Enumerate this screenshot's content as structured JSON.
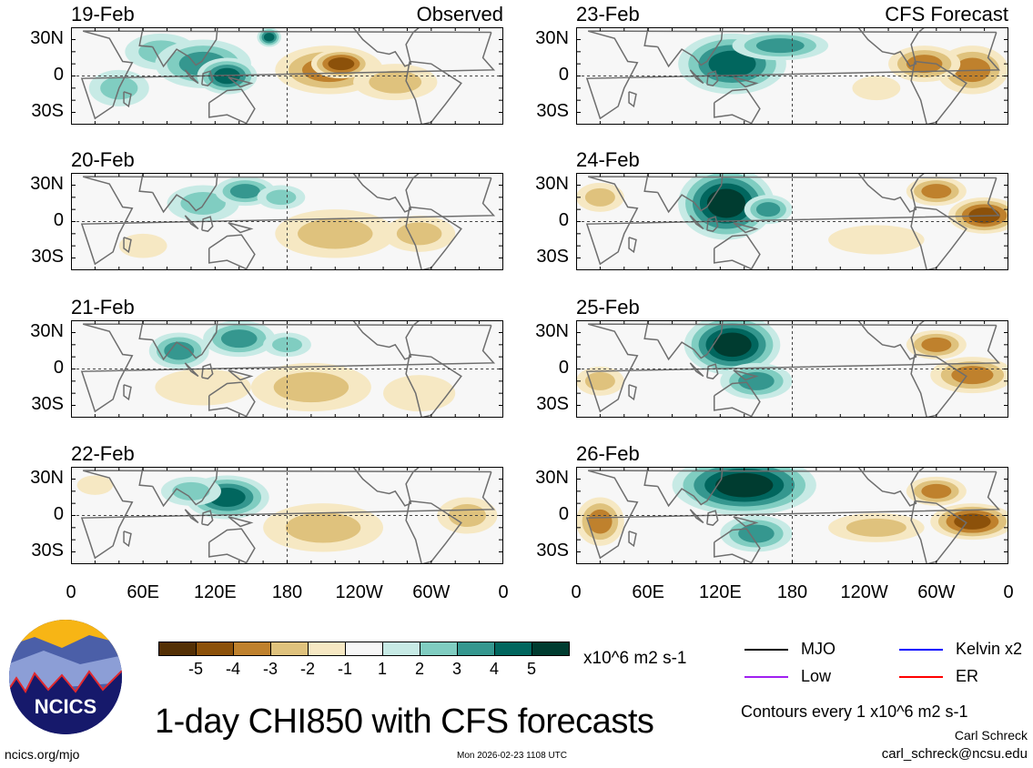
{
  "panels": [
    {
      "date": "19-Feb",
      "label": "Observed"
    },
    {
      "date": "20-Feb",
      "label": ""
    },
    {
      "date": "21-Feb",
      "label": ""
    },
    {
      "date": "22-Feb",
      "label": ""
    },
    {
      "date": "23-Feb",
      "label": "CFS Forecast"
    },
    {
      "date": "24-Feb",
      "label": ""
    },
    {
      "date": "25-Feb",
      "label": ""
    },
    {
      "date": "26-Feb",
      "label": ""
    }
  ],
  "y_ticks": [
    "30N",
    "0",
    "30S"
  ],
  "x_ticks": [
    "0",
    "60E",
    "120E",
    "180",
    "120W",
    "60W",
    "0"
  ],
  "colorbar": {
    "colors": [
      "#543005",
      "#8c510a",
      "#bf812d",
      "#dfc27d",
      "#f6e8c3",
      "#f7f7f7",
      "#c7eae5",
      "#80cdc1",
      "#35978f",
      "#01665e",
      "#003c30"
    ],
    "labels": [
      "-5",
      "-4",
      "-3",
      "-2",
      "-1",
      "1",
      "2",
      "3",
      "4",
      "5"
    ],
    "units": "x10^6 m2 s-1"
  },
  "legend": [
    {
      "label": "MJO",
      "color": "#000000"
    },
    {
      "label": "Kelvin x2",
      "color": "#0000ff"
    },
    {
      "label": "Low",
      "color": "#a020f0"
    },
    {
      "label": "ER",
      "color": "#ff0000"
    }
  ],
  "logo_text": "NCICS",
  "title": "1-day CHI850 with CFS forecasts",
  "contours_note": "Contours every 1 x10^6 m2 s-1",
  "author": "Carl Schreck",
  "email": "carl_schreck@ncsu.edu",
  "website": "ncics.org/mjo",
  "timestamp": "Mon 2026-02-23 1108 UTC"
}
